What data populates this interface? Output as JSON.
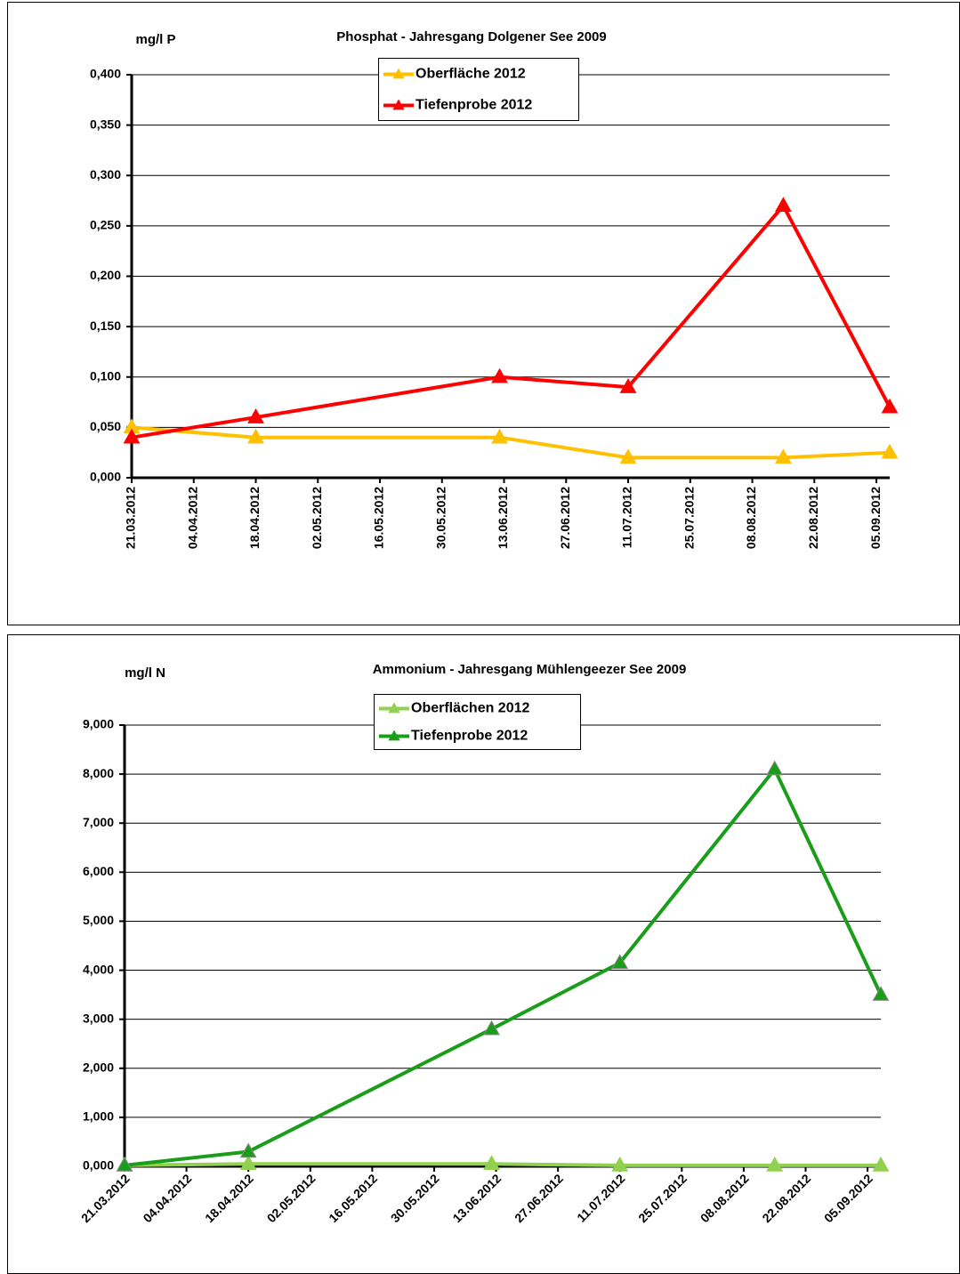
{
  "chart_data": [
    {
      "type": "line",
      "title": "Phosphat - Jahresgang Dolgener See   2009",
      "y_label": "mg/l P",
      "x": [
        "21.03.2012",
        "18.04.2012",
        "12.06.2012",
        "11.07.2012",
        "15.08.2012",
        "08.09.2012"
      ],
      "series": [
        {
          "name": "Oberfläche 2012",
          "color": "#ffc000",
          "values": [
            0.05,
            0.04,
            0.04,
            0.02,
            0.02,
            0.025
          ]
        },
        {
          "name": "Tiefenprobe 2012",
          "color": "#ff0000",
          "values": [
            0.04,
            0.06,
            0.1,
            0.09,
            0.27,
            0.07
          ]
        }
      ],
      "xlim": [
        "21.03.2012",
        "08.09.2012"
      ],
      "xticks": [
        "21.03.2012",
        "04.04.2012",
        "18.04.2012",
        "02.05.2012",
        "16.05.2012",
        "30.05.2012",
        "13.06.2012",
        "27.06.2012",
        "11.07.2012",
        "25.07.2012",
        "08.08.2012",
        "22.08.2012",
        "05.09.2012"
      ],
      "ylim": [
        0,
        0.4
      ],
      "yticks": [
        {
          "value": 0,
          "label": "0,000"
        },
        {
          "value": 0.05,
          "label": "0,050"
        },
        {
          "value": 0.1,
          "label": "0,100"
        },
        {
          "value": 0.15,
          "label": "0,150"
        },
        {
          "value": 0.2,
          "label": "0,200"
        },
        {
          "value": 0.25,
          "label": "0,250"
        },
        {
          "value": 0.3,
          "label": "0,300"
        },
        {
          "value": 0.35,
          "label": "0,350"
        },
        {
          "value": 0.4,
          "label": "0,400"
        }
      ],
      "grid": true,
      "legend": "top"
    },
    {
      "type": "line",
      "title": "Ammonium - Jahresgang Mühlengeezer See  2009",
      "y_label": "mg/l N",
      "x": [
        "21.03.2012",
        "18.04.2012",
        "12.06.2012",
        "11.07.2012",
        "15.08.2012",
        "08.09.2012"
      ],
      "series": [
        {
          "name": "Oberflächen 2012",
          "color": "#92d050",
          "values": [
            0.02,
            0.05,
            0.05,
            0.02,
            0.02,
            0.02
          ]
        },
        {
          "name": "Tiefenprobe 2012",
          "color": "#1a9e1a",
          "values": [
            0.02,
            0.3,
            2.8,
            4.15,
            8.1,
            3.5
          ]
        }
      ],
      "xlim": [
        "21.03.2012",
        "08.09.2012"
      ],
      "xticks": [
        "21.03.2012",
        "04.04.2012",
        "18.04.2012",
        "02.05.2012",
        "16.05.2012",
        "30.05.2012",
        "13.06.2012",
        "27.06.2012",
        "11.07.2012",
        "25.07.2012",
        "08.08.2012",
        "22.08.2012",
        "05.09.2012"
      ],
      "ylim": [
        0,
        9
      ],
      "yticks": [
        {
          "value": 0,
          "label": "0,000"
        },
        {
          "value": 1,
          "label": "1,000"
        },
        {
          "value": 2,
          "label": "2,000"
        },
        {
          "value": 3,
          "label": "3,000"
        },
        {
          "value": 4,
          "label": "4,000"
        },
        {
          "value": 5,
          "label": "5,000"
        },
        {
          "value": 6,
          "label": "6,000"
        },
        {
          "value": 7,
          "label": "7,000"
        },
        {
          "value": 8,
          "label": "8,000"
        },
        {
          "value": 9,
          "label": "9,000"
        }
      ],
      "grid": true,
      "legend": "top"
    }
  ]
}
